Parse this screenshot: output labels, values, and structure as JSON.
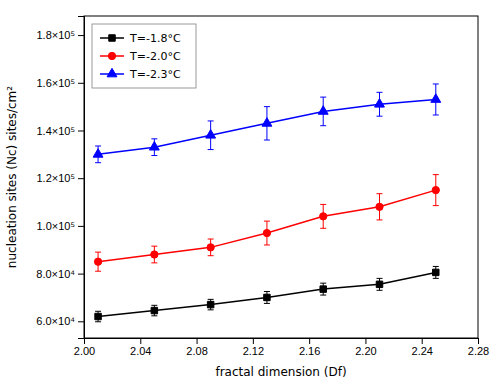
{
  "chart_data": {
    "type": "line",
    "x": [
      2.01,
      2.05,
      2.09,
      2.13,
      2.17,
      2.21,
      2.25
    ],
    "series": [
      {
        "name": "T=-1.8°C",
        "color": "black",
        "marker": "square",
        "values": [
          62000,
          64500,
          67000,
          70000,
          73500,
          75500,
          80500
        ],
        "errors": [
          2200,
          2200,
          2200,
          2500,
          2500,
          2500,
          2500
        ]
      },
      {
        "name": "T=-2.0°C",
        "color": "red",
        "marker": "circle",
        "values": [
          85000,
          88000,
          91000,
          97000,
          104000,
          108000,
          115000
        ],
        "errors": [
          4000,
          3500,
          3500,
          5000,
          5000,
          5500,
          6500
        ]
      },
      {
        "name": "T=-2.3°C",
        "color": "blue",
        "marker": "triangle",
        "values": [
          130000,
          133000,
          138000,
          143000,
          148000,
          151000,
          153000
        ],
        "errors": [
          3500,
          3500,
          6000,
          7000,
          6000,
          5000,
          6500
        ]
      }
    ],
    "x_label": "fractal dimension (Df)",
    "y_label": "nucleation sites (Nc) sites/cm²",
    "xlim": [
      2.0,
      2.28
    ],
    "ylim": [
      53000,
      188000
    ],
    "xticks": [
      {
        "value": 2.0,
        "label": "2.00"
      },
      2.04,
      2.08,
      2.12,
      2.16,
      {
        "value": 2.2,
        "label": "2.20"
      },
      2.24,
      2.28
    ],
    "yticks": [
      {
        "value": 60000,
        "label": "6.0×10⁴"
      },
      {
        "value": 80000,
        "label": "8.0×10⁴"
      },
      {
        "value": 100000,
        "label": "1.0×10⁵"
      },
      {
        "value": 120000,
        "label": "1.2×10⁵"
      },
      {
        "value": 140000,
        "label": "1.4×10⁵"
      },
      {
        "value": 160000,
        "label": "1.6×10⁵"
      },
      {
        "value": 180000,
        "label": "1.8×10⁵"
      }
    ],
    "legend": "upper left",
    "grid": false
  }
}
